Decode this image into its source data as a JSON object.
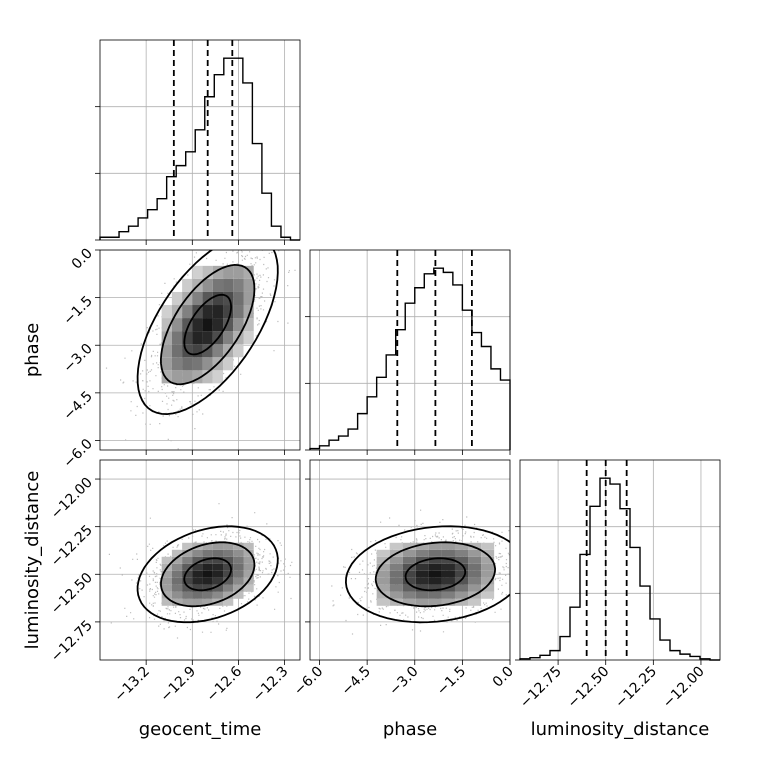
{
  "chart_data": {
    "type": "corner",
    "parameters": [
      "geocent_time",
      "phase",
      "luminosity_distance"
    ],
    "ranges": {
      "geocent_time": [
        -13.5,
        -12.2
      ],
      "phase": [
        -6.3,
        0.0
      ],
      "luminosity_distance": [
        -12.95,
        -11.9
      ]
    },
    "ticks": {
      "geocent_time": {
        "values": [
          -13.2,
          -12.9,
          -12.6,
          -12.3
        ],
        "labels": [
          "−13.2",
          "−12.9",
          "−12.6",
          "−12.3"
        ]
      },
      "phase": {
        "values": [
          -6.0,
          -4.5,
          -3.0,
          -1.5,
          0.0
        ],
        "labels": [
          "−6.0",
          "−4.5",
          "−3.0",
          "−1.5",
          "0.0"
        ]
      },
      "luminosity_distance": {
        "values": [
          -12.75,
          -12.5,
          -12.25,
          -12.0
        ],
        "labels": [
          "−12.75",
          "−12.50",
          "−12.25",
          "−12.00"
        ]
      }
    },
    "quantiles": {
      "geocent_time": [
        -13.02,
        -12.8,
        -12.64
      ],
      "phase": [
        -3.55,
        -2.35,
        -1.2
      ],
      "luminosity_distance": [
        -12.6,
        -12.5,
        -12.39
      ]
    },
    "histograms": {
      "geocent_time": [
        1,
        1,
        3,
        5,
        8,
        11,
        15,
        23,
        27,
        32,
        40,
        52,
        60,
        66,
        66,
        57,
        35,
        17,
        5,
        1,
        0
      ],
      "phase": [
        1,
        3,
        7,
        10,
        15,
        26,
        38,
        52,
        68,
        86,
        105,
        116,
        126,
        130,
        127,
        118,
        100,
        84,
        74,
        58,
        50
      ],
      "luminosity_distance": [
        1,
        2,
        4,
        8,
        20,
        45,
        90,
        131,
        155,
        150,
        129,
        96,
        63,
        35,
        17,
        8,
        5,
        3,
        1,
        0
      ]
    },
    "correlations": {
      "phase|geocent_time": 0.6,
      "luminosity_distance|geocent_time": 0.3,
      "luminosity_distance|phase": 0.15
    },
    "grid": true
  }
}
